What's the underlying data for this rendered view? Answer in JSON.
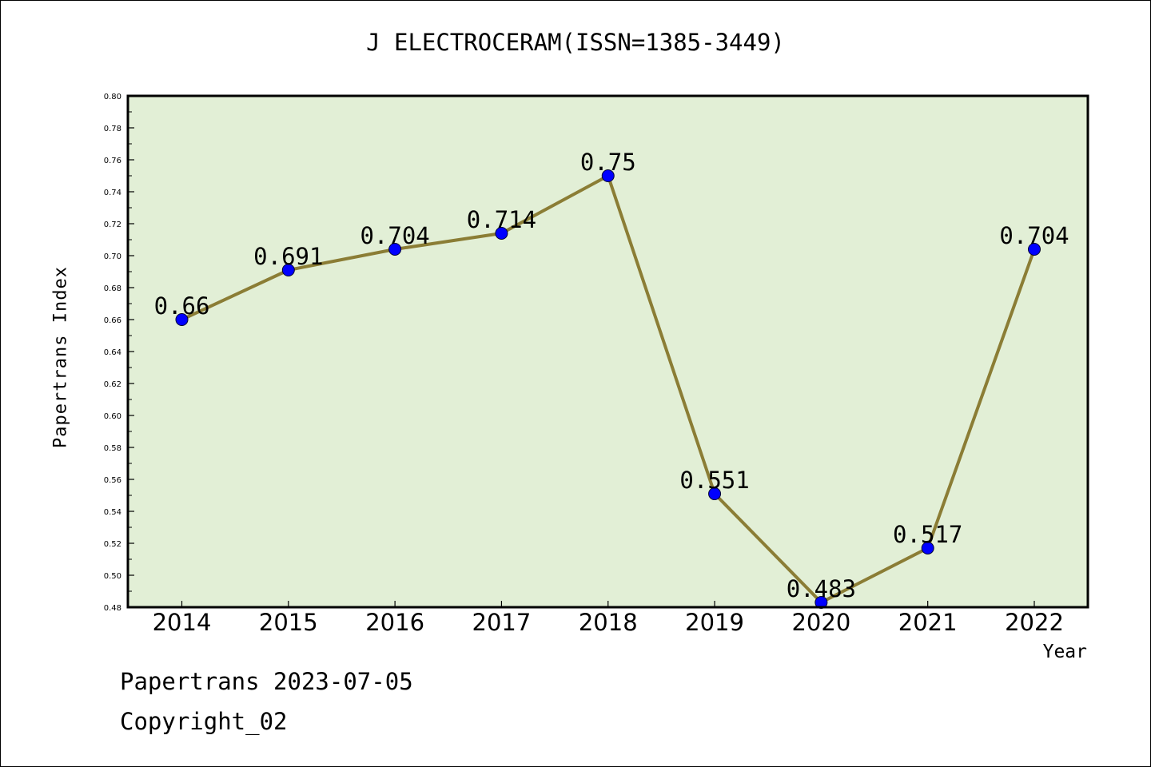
{
  "footer": {
    "date_line": "Papertrans 2023-07-05",
    "copyright": "Copyright_02"
  },
  "chart_data": {
    "type": "line",
    "title": "J ELECTROCERAM(ISSN=1385-3449)",
    "xlabel": "Year",
    "ylabel": "Papertrans Index",
    "categories": [
      "2014",
      "2015",
      "2016",
      "2017",
      "2018",
      "2019",
      "2020",
      "2021",
      "2022"
    ],
    "values": [
      0.66,
      0.691,
      0.704,
      0.714,
      0.75,
      0.551,
      0.483,
      0.517,
      0.704
    ],
    "data_labels": [
      "0.66",
      "0.691",
      "0.704",
      "0.714",
      "0.75",
      "0.551",
      "0.483",
      "0.517",
      "0.704"
    ],
    "ylim": [
      0.48,
      0.8
    ],
    "yticks": [
      "0.48",
      "0.50",
      "0.52",
      "0.54",
      "0.56",
      "0.58",
      "0.60",
      "0.62",
      "0.64",
      "0.66",
      "0.68",
      "0.70",
      "0.72",
      "0.74",
      "0.76",
      "0.78",
      "0.80"
    ],
    "grid": false,
    "legend": "none",
    "colors": {
      "plot_background": "#e2efd6",
      "line": "#8b7d35",
      "marker": "#0000ff"
    }
  }
}
